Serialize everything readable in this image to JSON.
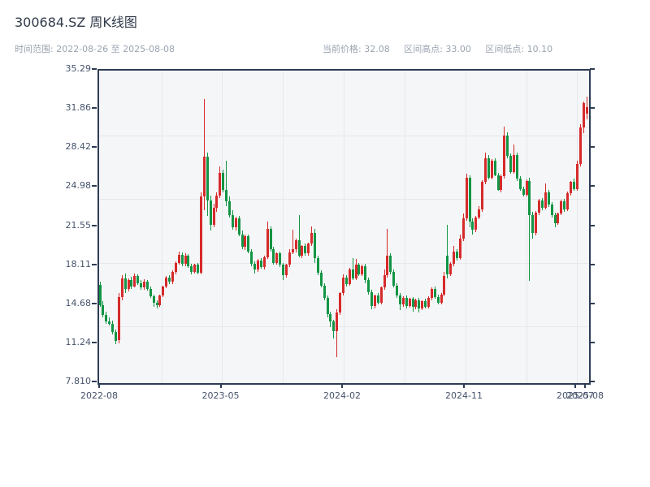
{
  "header": {
    "title": "300684.SZ 周K线图",
    "range_text": "时间范围: 2022-08-26 至 2025-08-08",
    "stats": {
      "current": "当前价格: 32.08",
      "high": "区间高点: 33.00",
      "low": "区间低点: 10.10"
    }
  },
  "chart_data": {
    "type": "candlestick",
    "symbol": "300684.SZ",
    "period": "weekly",
    "title": "300684.SZ 周K线图",
    "date_range": [
      "2022-08-26",
      "2025-08-08"
    ],
    "current_price": 32.08,
    "range_high": 33.0,
    "range_low": 10.1,
    "ylim": [
      7.81,
      35.29
    ],
    "y_ticks": [
      35.29,
      31.86,
      28.42,
      24.98,
      21.55,
      18.11,
      14.68,
      11.24,
      7.81
    ],
    "y_tick_labels": [
      "35.29",
      "31.86",
      "28.42",
      "24.98",
      "21.55",
      "18.11",
      "14.68",
      "11.24",
      "7.810"
    ],
    "x_tick_labels": [
      "2022-08",
      "2023-05",
      "2024-02",
      "2024-11",
      "2025-07",
      "2025-08"
    ],
    "grid": true,
    "legend": "none",
    "colors": {
      "up": "#d62a2a",
      "down": "#129544"
    },
    "columns": [
      "date",
      "open",
      "high",
      "low",
      "close"
    ],
    "candles": [
      [
        "2022-08-26",
        16.45,
        16.72,
        14.5,
        14.66
      ],
      [
        "2022-09-02",
        14.66,
        15.05,
        13.6,
        13.8
      ],
      [
        "2022-09-09",
        13.8,
        14.1,
        13.02,
        13.25
      ],
      [
        "2022-09-16",
        13.25,
        13.58,
        12.88,
        13.05
      ],
      [
        "2022-09-23",
        13.05,
        13.3,
        12.1,
        12.3
      ],
      [
        "2022-09-30",
        12.3,
        12.52,
        11.2,
        11.55
      ],
      [
        "2022-10-07",
        11.6,
        15.72,
        11.32,
        15.4
      ],
      [
        "2022-10-14",
        15.4,
        17.3,
        15.1,
        17.05
      ],
      [
        "2022-10-21",
        17.05,
        17.42,
        15.72,
        16.1
      ],
      [
        "2022-10-28",
        16.1,
        17.0,
        15.9,
        16.9
      ],
      [
        "2022-11-04",
        16.9,
        17.15,
        16.1,
        16.3
      ],
      [
        "2022-11-11",
        16.3,
        17.45,
        16.2,
        17.2
      ],
      [
        "2022-11-18",
        17.2,
        17.38,
        16.42,
        16.6
      ],
      [
        "2022-11-25",
        16.6,
        16.85,
        16.02,
        16.2
      ],
      [
        "2022-12-02",
        16.2,
        16.92,
        16.0,
        16.75
      ],
      [
        "2022-12-09",
        16.75,
        16.9,
        15.95,
        16.1
      ],
      [
        "2022-12-16",
        16.1,
        16.28,
        15.3,
        15.45
      ],
      [
        "2022-12-23",
        15.45,
        15.6,
        14.55,
        14.9
      ],
      [
        "2022-12-30",
        14.9,
        15.1,
        14.35,
        14.65
      ],
      [
        "2023-01-06",
        14.65,
        15.62,
        14.5,
        15.5
      ],
      [
        "2023-01-13",
        15.5,
        16.4,
        15.35,
        16.3
      ],
      [
        "2023-01-20",
        16.3,
        17.22,
        16.18,
        17.1
      ],
      [
        "2023-01-27",
        17.1,
        17.3,
        16.5,
        16.7
      ],
      [
        "2023-02-03",
        16.7,
        17.72,
        16.55,
        17.6
      ],
      [
        "2023-02-10",
        17.6,
        18.52,
        17.4,
        18.4
      ],
      [
        "2023-02-17",
        18.4,
        19.35,
        18.25,
        19.1
      ],
      [
        "2023-02-24",
        19.1,
        19.28,
        18.12,
        18.3
      ],
      [
        "2023-03-03",
        18.3,
        19.25,
        18.1,
        19.0
      ],
      [
        "2023-03-10",
        19.0,
        19.18,
        17.95,
        18.1
      ],
      [
        "2023-03-17",
        18.1,
        18.3,
        17.4,
        17.6
      ],
      [
        "2023-03-24",
        17.6,
        18.32,
        17.45,
        18.2
      ],
      [
        "2023-03-31",
        18.2,
        18.4,
        17.35,
        17.55
      ],
      [
        "2023-04-07",
        17.55,
        24.6,
        17.35,
        24.2
      ],
      [
        "2023-04-14",
        24.2,
        32.8,
        23.0,
        27.7
      ],
      [
        "2023-04-21",
        27.7,
        28.1,
        22.5,
        23.9
      ],
      [
        "2023-04-28",
        23.9,
        24.3,
        21.2,
        21.7
      ],
      [
        "2023-05-05",
        21.7,
        23.6,
        21.5,
        23.2
      ],
      [
        "2023-05-12",
        23.2,
        24.55,
        22.9,
        24.3
      ],
      [
        "2023-05-19",
        24.3,
        26.9,
        24.1,
        26.3
      ],
      [
        "2023-05-26",
        26.3,
        26.6,
        24.6,
        24.8
      ],
      [
        "2023-06-02",
        24.8,
        27.4,
        23.4,
        23.8
      ],
      [
        "2023-06-09",
        23.8,
        24.2,
        22.4,
        22.6
      ],
      [
        "2023-06-16",
        22.6,
        23.0,
        21.3,
        21.5
      ],
      [
        "2023-06-23",
        21.5,
        22.45,
        21.2,
        22.3
      ],
      [
        "2023-06-30",
        22.3,
        22.5,
        20.7,
        20.9
      ],
      [
        "2023-07-07",
        20.9,
        21.2,
        19.6,
        19.8
      ],
      [
        "2023-07-14",
        19.8,
        20.85,
        19.55,
        20.7
      ],
      [
        "2023-07-21",
        20.7,
        20.9,
        19.2,
        19.4
      ],
      [
        "2023-07-28",
        19.4,
        19.62,
        18.1,
        18.3
      ],
      [
        "2023-08-04",
        18.3,
        18.5,
        17.45,
        17.8
      ],
      [
        "2023-08-11",
        17.8,
        18.72,
        17.6,
        18.6
      ],
      [
        "2023-08-18",
        18.6,
        18.8,
        17.85,
        18.0
      ],
      [
        "2023-08-25",
        18.0,
        19.02,
        17.8,
        18.9
      ],
      [
        "2023-09-01",
        18.9,
        22.0,
        18.7,
        21.4
      ],
      [
        "2023-09-08",
        21.4,
        21.6,
        19.4,
        19.6
      ],
      [
        "2023-09-15",
        19.6,
        19.8,
        18.2,
        18.4
      ],
      [
        "2023-09-22",
        18.4,
        19.32,
        18.2,
        19.2
      ],
      [
        "2023-09-29",
        19.2,
        19.4,
        18.0,
        18.2
      ],
      [
        "2023-10-06",
        18.2,
        18.4,
        16.9,
        17.3
      ],
      [
        "2023-10-13",
        17.3,
        18.32,
        17.1,
        18.2
      ],
      [
        "2023-10-20",
        18.2,
        19.6,
        18.05,
        19.3
      ],
      [
        "2023-10-27",
        19.3,
        21.3,
        19.15,
        19.6
      ],
      [
        "2023-11-03",
        19.6,
        20.52,
        19.3,
        20.4
      ],
      [
        "2023-11-10",
        20.4,
        22.6,
        18.9,
        19.0
      ],
      [
        "2023-11-17",
        19.0,
        19.95,
        18.8,
        19.9
      ],
      [
        "2023-11-24",
        19.9,
        20.1,
        19.05,
        19.2
      ],
      [
        "2023-12-01",
        19.2,
        20.18,
        19.0,
        20.1
      ],
      [
        "2023-12-08",
        20.1,
        21.6,
        19.9,
        21.0
      ],
      [
        "2023-12-15",
        21.0,
        21.4,
        18.4,
        18.8
      ],
      [
        "2023-12-22",
        18.8,
        19.0,
        17.3,
        17.5
      ],
      [
        "2023-12-29",
        17.5,
        17.7,
        16.2,
        16.4
      ],
      [
        "2024-01-05",
        16.4,
        16.6,
        15.1,
        15.3
      ],
      [
        "2024-01-12",
        15.3,
        15.5,
        13.6,
        13.9
      ],
      [
        "2024-01-19",
        13.9,
        14.1,
        12.7,
        13.2
      ],
      [
        "2024-01-26",
        13.2,
        13.4,
        11.7,
        12.4
      ],
      [
        "2024-02-02",
        12.4,
        14.3,
        10.1,
        14.0
      ],
      [
        "2024-02-09",
        14.0,
        15.8,
        13.8,
        15.7
      ],
      [
        "2024-02-16",
        15.7,
        17.4,
        15.5,
        17.1
      ],
      [
        "2024-02-23",
        17.1,
        17.3,
        16.3,
        16.5
      ],
      [
        "2024-03-01",
        16.5,
        17.92,
        16.35,
        17.8
      ],
      [
        "2024-03-08",
        17.8,
        18.8,
        16.85,
        17.0
      ],
      [
        "2024-03-15",
        17.0,
        18.7,
        16.9,
        18.2
      ],
      [
        "2024-03-22",
        18.2,
        18.4,
        17.2,
        17.4
      ],
      [
        "2024-03-29",
        17.4,
        18.22,
        17.25,
        18.1
      ],
      [
        "2024-04-05",
        18.1,
        18.3,
        16.6,
        16.9
      ],
      [
        "2024-04-12",
        16.9,
        17.1,
        15.6,
        15.8
      ],
      [
        "2024-04-19",
        15.8,
        16.0,
        14.3,
        14.6
      ],
      [
        "2024-04-26",
        14.6,
        15.62,
        14.4,
        15.5
      ],
      [
        "2024-05-03",
        15.5,
        15.7,
        14.7,
        14.9
      ],
      [
        "2024-05-10",
        14.9,
        16.32,
        14.75,
        16.2
      ],
      [
        "2024-05-17",
        16.2,
        17.8,
        16.0,
        17.3
      ],
      [
        "2024-05-24",
        17.3,
        21.4,
        17.1,
        19.0
      ],
      [
        "2024-05-31",
        19.0,
        19.2,
        17.4,
        17.6
      ],
      [
        "2024-06-07",
        17.6,
        17.8,
        16.2,
        16.4
      ],
      [
        "2024-06-14",
        16.4,
        16.6,
        15.3,
        15.5
      ],
      [
        "2024-06-21",
        15.5,
        15.7,
        14.2,
        14.7
      ],
      [
        "2024-06-28",
        14.7,
        15.42,
        14.5,
        15.3
      ],
      [
        "2024-07-05",
        15.3,
        15.5,
        14.4,
        14.6
      ],
      [
        "2024-07-12",
        14.6,
        15.32,
        14.45,
        15.2
      ],
      [
        "2024-07-19",
        15.2,
        15.38,
        14.1,
        14.5
      ],
      [
        "2024-07-26",
        14.5,
        15.22,
        14.3,
        15.1
      ],
      [
        "2024-08-02",
        15.1,
        15.3,
        14.05,
        14.4
      ],
      [
        "2024-08-09",
        14.4,
        15.12,
        14.2,
        15.0
      ],
      [
        "2024-08-16",
        15.0,
        15.2,
        14.35,
        14.55
      ],
      [
        "2024-08-23",
        14.55,
        15.42,
        14.4,
        15.3
      ],
      [
        "2024-08-30",
        15.3,
        16.22,
        15.1,
        16.1
      ],
      [
        "2024-09-06",
        16.1,
        16.3,
        15.2,
        15.4
      ],
      [
        "2024-09-13",
        15.4,
        15.6,
        14.7,
        14.9
      ],
      [
        "2024-09-20",
        14.9,
        15.72,
        14.75,
        15.6
      ],
      [
        "2024-09-27",
        15.6,
        17.6,
        15.45,
        17.2
      ],
      [
        "2024-10-04",
        19.0,
        21.7,
        17.0,
        17.4
      ],
      [
        "2024-10-11",
        17.4,
        18.42,
        17.2,
        18.3
      ],
      [
        "2024-10-18",
        18.3,
        19.9,
        18.1,
        19.4
      ],
      [
        "2024-10-25",
        19.4,
        19.6,
        18.6,
        18.8
      ],
      [
        "2024-11-01",
        18.8,
        20.9,
        18.65,
        20.5
      ],
      [
        "2024-11-08",
        20.5,
        22.7,
        20.3,
        22.3
      ],
      [
        "2024-11-15",
        22.3,
        26.2,
        22.1,
        25.9
      ],
      [
        "2024-11-22",
        25.9,
        26.1,
        21.5,
        22.0
      ],
      [
        "2024-11-29",
        22.0,
        22.3,
        20.9,
        21.3
      ],
      [
        "2024-12-06",
        21.3,
        22.52,
        21.1,
        22.4
      ],
      [
        "2024-12-13",
        22.4,
        23.4,
        22.2,
        23.1
      ],
      [
        "2024-12-20",
        23.1,
        25.62,
        22.9,
        25.5
      ],
      [
        "2024-12-27",
        25.5,
        28.1,
        25.3,
        27.6
      ],
      [
        "2025-01-03",
        27.6,
        27.9,
        25.7,
        25.9
      ],
      [
        "2025-01-10",
        25.9,
        27.52,
        25.75,
        27.4
      ],
      [
        "2025-01-17",
        27.4,
        27.6,
        26.0,
        26.1
      ],
      [
        "2025-01-24",
        26.1,
        26.3,
        24.7,
        24.8
      ],
      [
        "2025-01-31",
        24.8,
        26.12,
        24.6,
        26.0
      ],
      [
        "2025-02-07",
        26.0,
        30.4,
        25.8,
        29.6
      ],
      [
        "2025-02-14",
        29.6,
        29.9,
        27.6,
        27.8
      ],
      [
        "2025-02-21",
        27.8,
        28.0,
        26.2,
        26.4
      ],
      [
        "2025-02-28",
        26.4,
        28.8,
        26.25,
        27.9
      ],
      [
        "2025-03-07",
        27.9,
        28.1,
        25.6,
        25.8
      ],
      [
        "2025-03-14",
        25.8,
        26.0,
        24.7,
        24.9
      ],
      [
        "2025-03-21",
        24.9,
        25.1,
        24.2,
        24.4
      ],
      [
        "2025-03-28",
        24.4,
        25.72,
        24.25,
        25.6
      ],
      [
        "2025-04-04",
        25.6,
        25.9,
        16.8,
        22.6
      ],
      [
        "2025-04-11",
        22.6,
        22.9,
        20.5,
        21.0
      ],
      [
        "2025-04-18",
        21.0,
        22.92,
        20.8,
        22.8
      ],
      [
        "2025-04-25",
        22.8,
        24.0,
        22.6,
        23.9
      ],
      [
        "2025-05-02",
        23.9,
        24.1,
        23.0,
        23.2
      ],
      [
        "2025-05-09",
        23.2,
        25.4,
        23.05,
        24.6
      ],
      [
        "2025-05-16",
        24.6,
        24.8,
        23.3,
        23.5
      ],
      [
        "2025-05-23",
        23.5,
        23.7,
        22.4,
        22.6
      ],
      [
        "2025-05-30",
        22.6,
        22.8,
        21.5,
        21.9
      ],
      [
        "2025-06-06",
        21.9,
        22.82,
        21.7,
        22.7
      ],
      [
        "2025-06-13",
        22.7,
        23.92,
        22.55,
        23.8
      ],
      [
        "2025-06-20",
        23.8,
        24.0,
        22.9,
        23.1
      ],
      [
        "2025-06-27",
        23.1,
        24.62,
        22.95,
        24.5
      ],
      [
        "2025-07-04",
        24.5,
        25.6,
        24.3,
        25.5
      ],
      [
        "2025-07-11",
        25.5,
        25.8,
        24.7,
        24.9
      ],
      [
        "2025-07-18",
        24.9,
        27.4,
        24.75,
        27.1
      ],
      [
        "2025-07-25",
        27.1,
        30.6,
        26.9,
        30.3
      ],
      [
        "2025-08-01",
        30.3,
        32.6,
        29.8,
        32.4
      ],
      [
        "2025-08-08",
        31.5,
        33.0,
        31.0,
        32.08
      ]
    ]
  }
}
